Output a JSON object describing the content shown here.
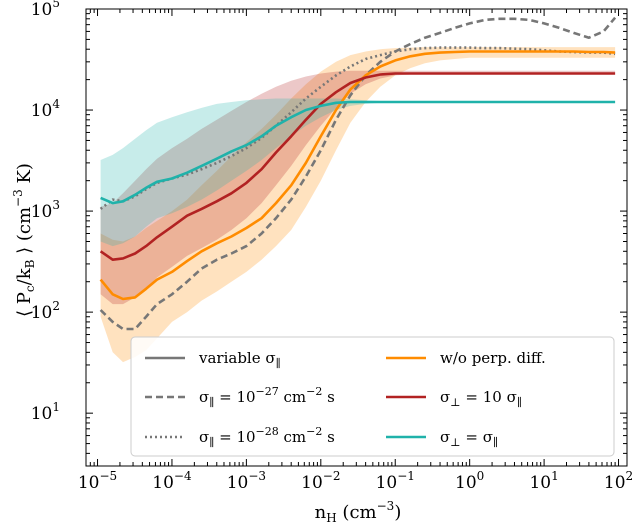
{
  "chart_data": {
    "type": "line",
    "xlabel": "n_H (cm^-3)",
    "ylabel": "⟨ P_c/k_B ⟩ (cm^-3 K)",
    "xscale": "log",
    "yscale": "log",
    "xlim": [
      7e-06,
      130
    ],
    "ylim": [
      3,
      100000
    ],
    "grid": false,
    "legend_position": "lower-right",
    "x_ticks": [
      {
        "value": 1e-05,
        "mant": "10",
        "exp": "−5"
      },
      {
        "value": 0.0001,
        "mant": "10",
        "exp": "−4"
      },
      {
        "value": 0.001,
        "mant": "10",
        "exp": "−3"
      },
      {
        "value": 0.01,
        "mant": "10",
        "exp": "−2"
      },
      {
        "value": 0.1,
        "mant": "10",
        "exp": "−1"
      },
      {
        "value": 1,
        "mant": "10",
        "exp": "0"
      },
      {
        "value": 10,
        "mant": "10",
        "exp": "1"
      },
      {
        "value": 100,
        "mant": "10",
        "exp": "2"
      }
    ],
    "y_ticks": [
      {
        "value": 10,
        "mant": "10",
        "exp": "1"
      },
      {
        "value": 100,
        "mant": "10",
        "exp": "2"
      },
      {
        "value": 1000,
        "mant": "10",
        "exp": "3"
      },
      {
        "value": 10000,
        "mant": "10",
        "exp": "4"
      },
      {
        "value": 100000,
        "mant": "10",
        "exp": "5"
      }
    ],
    "x": [
      1.1e-05,
      1.6e-05,
      2.2e-05,
      3.2e-05,
      4.5e-05,
      6.3e-05,
      0.0001,
      0.00016,
      0.00025,
      0.0004,
      0.00063,
      0.001,
      0.0016,
      0.0025,
      0.004,
      0.0063,
      0.01,
      0.016,
      0.025,
      0.04,
      0.063,
      0.1,
      0.16,
      0.25,
      0.4,
      0.63,
      1,
      1.6,
      2.5,
      4,
      6.3,
      10,
      16,
      25,
      40,
      63,
      90
    ],
    "series": [
      {
        "name": "w/o perp. diff.",
        "color": "#ff8c00",
        "style": "solid",
        "values": [
          210,
          150,
          135,
          140,
          170,
          210,
          250,
          320,
          400,
          480,
          560,
          680,
          850,
          1200,
          1800,
          3000,
          5500,
          10000,
          16000,
          22000,
          27000,
          31000,
          34000,
          36000,
          37000,
          37500,
          38000,
          38000,
          38000,
          38000,
          38000,
          38000,
          38000,
          38000,
          37500,
          37500,
          37000
        ],
        "band_low": [
          90,
          40,
          32,
          36,
          42,
          55,
          80,
          100,
          130,
          160,
          200,
          250,
          330,
          450,
          650,
          1100,
          2000,
          4000,
          7500,
          12000,
          17000,
          22000,
          26000,
          29000,
          31000,
          32000,
          33000,
          33000,
          33000,
          33000,
          33000,
          33000,
          33000,
          33000,
          33000,
          33000,
          33000
        ],
        "band_high": [
          600,
          520,
          500,
          560,
          680,
          800,
          1000,
          1300,
          1800,
          2500,
          3500,
          4800,
          6500,
          9000,
          13000,
          18000,
          24000,
          30000,
          35000,
          38000,
          40000,
          41000,
          41500,
          42000,
          42000,
          42000,
          42000,
          42000,
          42000,
          42000,
          42000,
          42000,
          42000,
          42000,
          42000,
          42000,
          42000
        ]
      },
      {
        "name": "σ_⊥ = 10 σ_∥",
        "color": "#b22222",
        "style": "solid",
        "values": [
          400,
          330,
          340,
          380,
          450,
          550,
          700,
          900,
          1050,
          1250,
          1500,
          1900,
          2600,
          3800,
          5500,
          8000,
          11500,
          15000,
          18500,
          21000,
          22500,
          23000,
          23000,
          23000,
          23000,
          23000,
          23000,
          23000,
          23000,
          23000,
          23000,
          23000,
          23000,
          23000,
          23000,
          23000,
          23000
        ],
        "band_low": [
          150,
          120,
          120,
          140,
          170,
          220,
          280,
          360,
          430,
          520,
          650,
          850,
          1200,
          1800,
          2800,
          4500,
          7000,
          10500,
          14500,
          18000,
          20500,
          22000,
          22500,
          22500,
          22500,
          22500,
          22500,
          22500,
          22500,
          22500,
          22500,
          22500,
          22500,
          22500,
          22500,
          22500,
          22500
        ],
        "band_high": [
          1100,
          1200,
          1500,
          2000,
          2600,
          3300,
          4200,
          5200,
          6500,
          8000,
          9800,
          12000,
          14500,
          17000,
          19500,
          21500,
          23000,
          24000,
          24500,
          24500,
          24500,
          24500,
          24500,
          24500,
          24500,
          24500,
          24500,
          24500,
          24500,
          24500,
          24500,
          24500,
          24500,
          24500,
          24500,
          24500,
          24500
        ]
      },
      {
        "name": "σ_⊥ = σ_∥",
        "color": "#20b2aa",
        "style": "solid",
        "values": [
          1350,
          1200,
          1250,
          1450,
          1700,
          1950,
          2100,
          2400,
          2800,
          3300,
          3900,
          4500,
          5500,
          7000,
          8500,
          10000,
          11000,
          11800,
          12000,
          12000,
          12000,
          12000,
          12000,
          12000,
          12000,
          12000,
          12000,
          12000,
          12000,
          12000,
          12000,
          12000,
          12000,
          12000,
          12000,
          12000,
          12000
        ],
        "band_low": [
          500,
          450,
          480,
          560,
          700,
          850,
          950,
          1100,
          1300,
          1600,
          2000,
          2500,
          3200,
          4200,
          5500,
          7000,
          8500,
          10000,
          11000,
          11500,
          11800,
          11800,
          11800,
          11800,
          11800,
          11800,
          11800,
          11800,
          11800,
          11800,
          11800,
          11800,
          11800,
          11800,
          11800,
          11800,
          11800
        ],
        "band_high": [
          3200,
          3600,
          4200,
          5200,
          6300,
          7500,
          8500,
          9500,
          10500,
          11500,
          12000,
          12500,
          12800,
          13000,
          13000,
          13000,
          13000,
          13000,
          12800,
          12500,
          12300,
          12200,
          12200,
          12200,
          12200,
          12200,
          12200,
          12200,
          12200,
          12200,
          12200,
          12200,
          12200,
          12200,
          12200,
          12200,
          12200
        ]
      },
      {
        "name": "σ_∥ = 10^-27 cm^-2 s",
        "color": "#777777",
        "style": "dashed",
        "values": [
          105,
          80,
          68,
          68,
          90,
          120,
          150,
          200,
          270,
          330,
          380,
          450,
          600,
          850,
          1300,
          2200,
          4000,
          8000,
          14000,
          22000,
          30000,
          38000,
          45000,
          52000,
          58000,
          65000,
          72000,
          78000,
          80000,
          80000,
          78000,
          72000,
          65000,
          58000,
          52000,
          60000,
          82000
        ]
      },
      {
        "name": "σ_∥ = 10^-28 cm^-2 s",
        "color": "#777777",
        "style": "dotted",
        "values": [
          1050,
          1300,
          1250,
          1400,
          1650,
          1900,
          2100,
          2300,
          2600,
          3000,
          3500,
          4200,
          5300,
          7000,
          9500,
          13000,
          17000,
          22000,
          27000,
          32000,
          35000,
          38000,
          40000,
          41000,
          41500,
          41500,
          41500,
          41000,
          41000,
          40500,
          40000,
          39000,
          38000,
          37500,
          37000,
          37000,
          36000
        ]
      }
    ],
    "legend": [
      {
        "label": "variable σ",
        "sub": "∥",
        "sup": "",
        "suffix": "",
        "color": "#777777",
        "style": "solid"
      },
      {
        "label": "σ",
        "sub": "∥",
        "mid": " = 10",
        "sup": "−27",
        "suffix": " cm",
        "sup2": "−2",
        "suffix2": " s",
        "color": "#777777",
        "style": "dashed"
      },
      {
        "label": "σ",
        "sub": "∥",
        "mid": " = 10",
        "sup": "−28",
        "suffix": " cm",
        "sup2": "−2",
        "suffix2": " s",
        "color": "#777777",
        "style": "dotted"
      },
      {
        "label": "w/o perp. diff.",
        "color": "#ff8c00",
        "style": "solid"
      },
      {
        "label": "σ",
        "sub": "⊥",
        "mid": " = 10 σ",
        "sub2": "∥",
        "color": "#b22222",
        "style": "solid"
      },
      {
        "label": "σ",
        "sub": "⊥",
        "mid": " = σ",
        "sub2": "∥",
        "color": "#20b2aa",
        "style": "solid"
      }
    ]
  }
}
